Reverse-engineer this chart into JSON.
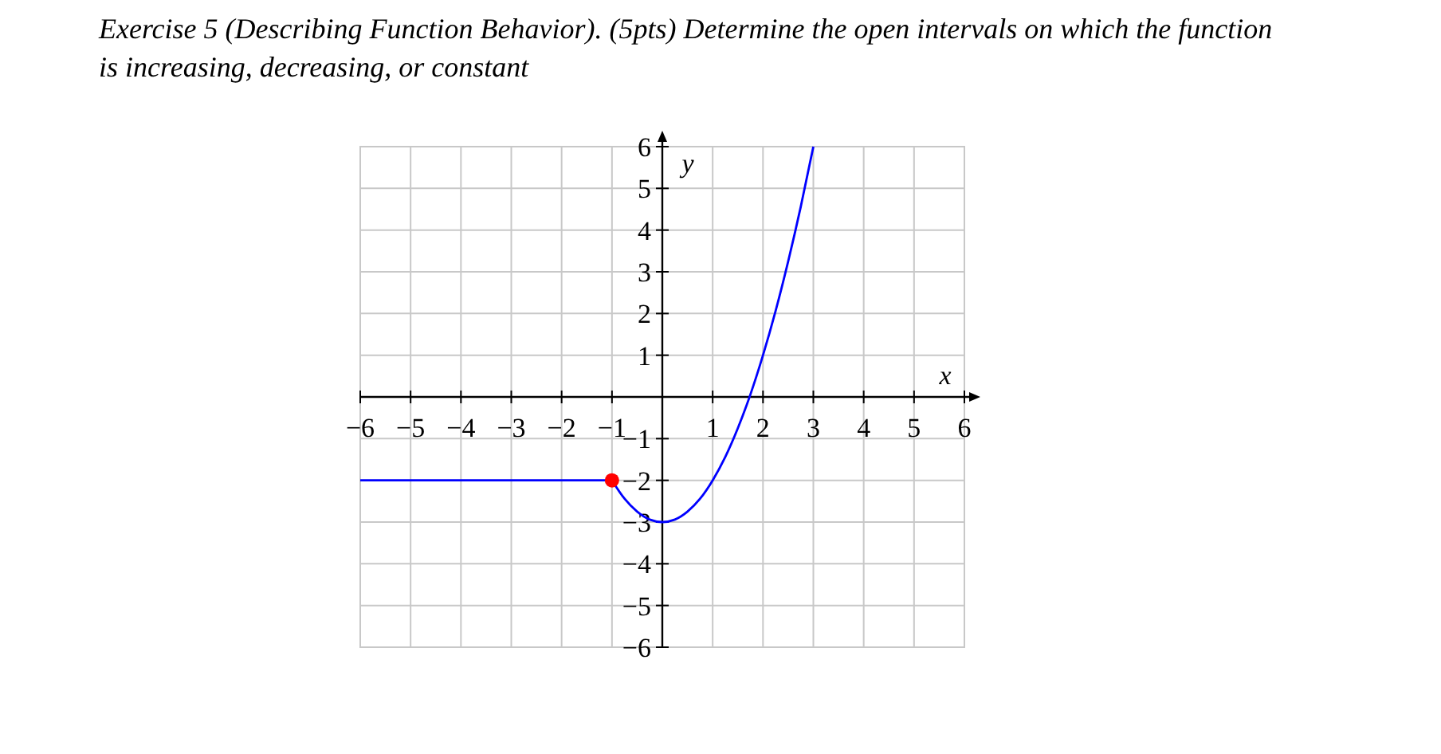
{
  "chart_data": {
    "type": "line",
    "title": "Exercise 5 (Describing Function Behavior). (5pts) Determine the open intervals on which the function is increasing, decreasing, or constant",
    "xlabel": "x",
    "ylabel": "y",
    "xlim": [
      -6,
      6
    ],
    "ylim": [
      -6,
      6
    ],
    "xticks": [
      -6,
      -5,
      -4,
      -3,
      -2,
      -1,
      1,
      2,
      3,
      4,
      5,
      6
    ],
    "yticks": [
      -6,
      -5,
      -4,
      -3,
      -2,
      -1,
      1,
      2,
      3,
      4,
      5,
      6
    ],
    "grid": true,
    "series": [
      {
        "color": "#0000ff",
        "x": [
          -6,
          -1
        ],
        "values": [
          -2,
          -2
        ]
      },
      {
        "color": "#0000ff",
        "x": [
          -1,
          -0.75,
          -0.5,
          -0.25,
          0,
          0.25,
          0.5,
          0.75,
          1,
          1.25,
          1.5,
          1.75,
          2,
          2.25,
          2.5,
          2.75,
          3
        ],
        "values": [
          -2,
          -2.44,
          -2.75,
          -2.94,
          -3,
          -2.94,
          -2.75,
          -2.44,
          -2,
          -1.44,
          -0.75,
          0.06,
          1,
          2.06,
          3.25,
          4.56,
          6
        ]
      },
      {
        "type": "scatter",
        "color": "#ff0000",
        "marker": "circle",
        "x": [
          -1
        ],
        "values": [
          -2
        ]
      }
    ]
  }
}
